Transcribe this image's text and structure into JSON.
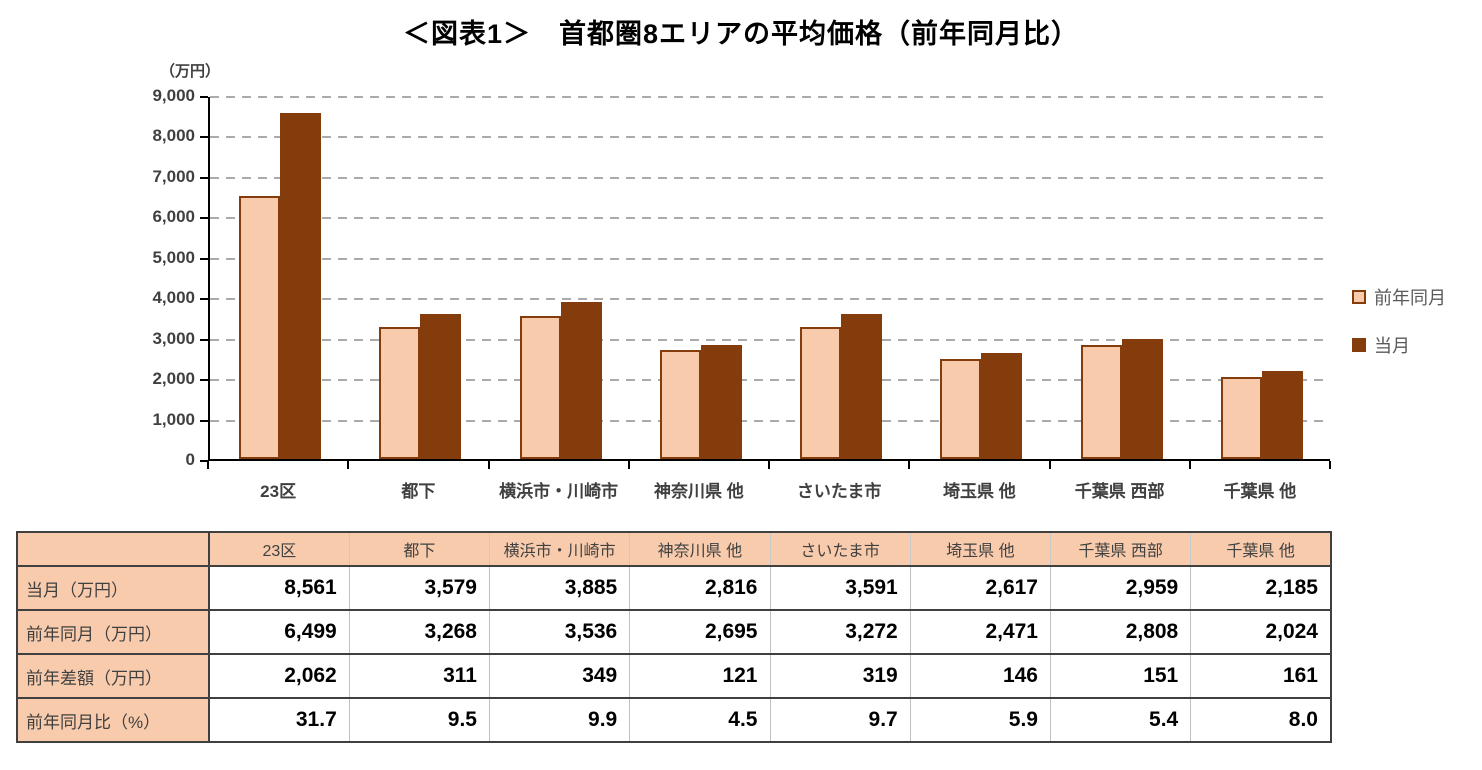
{
  "title": "＜図表1＞　首都圏8エリアの平均価格（前年同月比）",
  "chart_data": {
    "type": "bar",
    "title": "＜図表1＞　首都圏8エリアの平均価格（前年同月比）",
    "unit_label": "（万円）",
    "categories": [
      "23区",
      "都下",
      "横浜市・川崎市",
      "神奈川県 他",
      "さいたま市",
      "埼玉県 他",
      "千葉県 西部",
      "千葉県 他"
    ],
    "series": [
      {
        "name": "前年同月",
        "values": [
          6499,
          3268,
          3536,
          2695,
          3272,
          2471,
          2808,
          2024
        ],
        "fill": "#F8CBAD",
        "border": "#843C0C"
      },
      {
        "name": "当月",
        "values": [
          8561,
          3579,
          3885,
          2816,
          3591,
          2617,
          2959,
          2185
        ],
        "fill": "#843C0C",
        "border": "#843C0C"
      }
    ],
    "ylim": [
      0,
      9000
    ],
    "ytick_step": 1000,
    "ytick_labels": [
      "0",
      "1,000",
      "2,000",
      "3,000",
      "4,000",
      "5,000",
      "6,000",
      "7,000",
      "8,000",
      "9,000"
    ],
    "grid": "horizontal-dashed",
    "legend_position": "right"
  },
  "table": {
    "col_headers": [
      "",
      "23区",
      "都下",
      "横浜市・川崎市",
      "神奈川県 他",
      "さいたま市",
      "埼玉県 他",
      "千葉県 西部",
      "千葉県 他"
    ],
    "rows": [
      {
        "label": "当月（万円）",
        "values": [
          "8,561",
          "3,579",
          "3,885",
          "2,816",
          "3,591",
          "2,617",
          "2,959",
          "2,185"
        ]
      },
      {
        "label": "前年同月（万円）",
        "values": [
          "6,499",
          "3,268",
          "3,536",
          "2,695",
          "3,272",
          "2,471",
          "2,808",
          "2,024"
        ]
      },
      {
        "label": "前年差額（万円）",
        "values": [
          "2,062",
          "311",
          "349",
          "121",
          "319",
          "146",
          "151",
          "161"
        ]
      },
      {
        "label": "前年同月比（%）",
        "values": [
          "31.7",
          "9.5",
          "9.9",
          "4.5",
          "9.7",
          "5.9",
          "5.4",
          "8.0"
        ]
      }
    ]
  },
  "colors": {
    "bar_light": "#F8CBAD",
    "bar_dark": "#843C0C",
    "gridline": "#ABABAB",
    "axis": "#000000",
    "axis_text": "#404040",
    "legend_text": "#595959",
    "table_header_bg": "#F8CBAD",
    "table_border_dark": "#404040",
    "table_border_light": "#BFBFBF"
  }
}
